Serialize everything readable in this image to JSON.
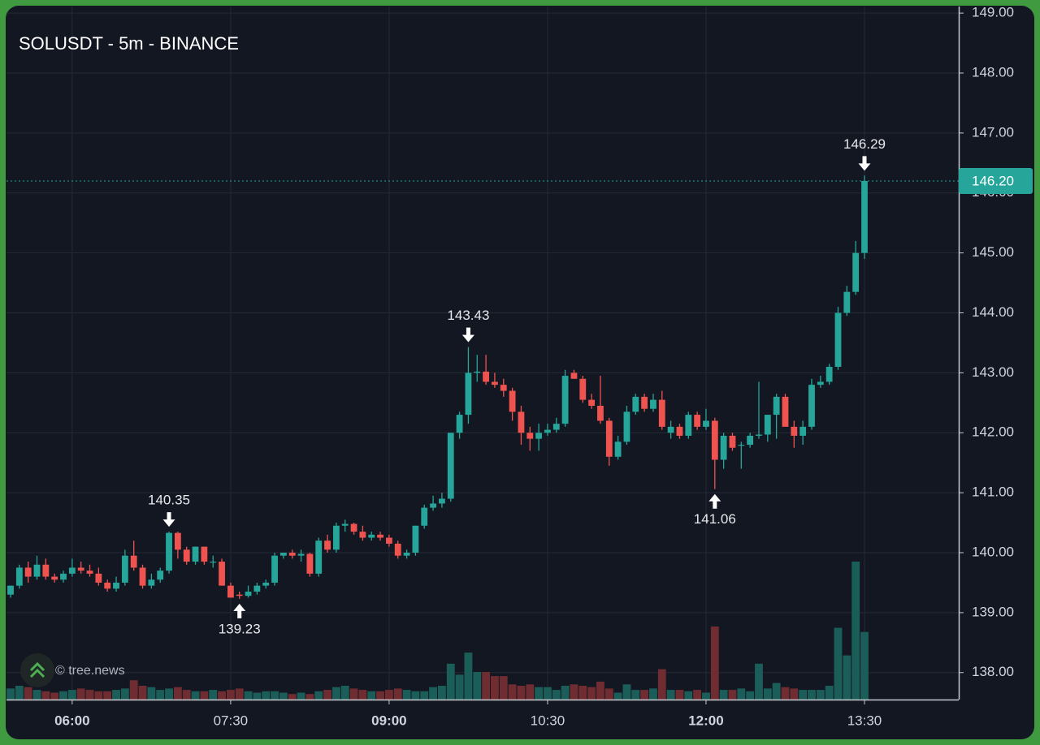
{
  "chart_data": {
    "type": "candlestick",
    "title": "SOLUSDT - 5m - BINANCE",
    "watermark": "© tree.news",
    "x": [
      "05:25",
      "05:30",
      "05:35",
      "05:40",
      "05:45",
      "05:50",
      "05:55",
      "06:00",
      "06:05",
      "06:10",
      "06:15",
      "06:20",
      "06:25",
      "06:30",
      "06:35",
      "06:40",
      "06:45",
      "06:50",
      "06:55",
      "07:00",
      "07:05",
      "07:10",
      "07:15",
      "07:20",
      "07:25",
      "07:30",
      "07:35",
      "07:40",
      "07:45",
      "07:50",
      "07:55",
      "08:00",
      "08:05",
      "08:10",
      "08:15",
      "08:20",
      "08:25",
      "08:30",
      "08:35",
      "08:40",
      "08:45",
      "08:50",
      "08:55",
      "09:00",
      "09:05",
      "09:10",
      "09:15",
      "09:20",
      "09:25",
      "09:30",
      "09:35",
      "09:40",
      "09:45",
      "09:50",
      "09:55",
      "10:00",
      "10:05",
      "10:10",
      "10:15",
      "10:20",
      "10:25",
      "10:30",
      "10:35",
      "10:40",
      "10:45",
      "10:50",
      "10:55",
      "11:00",
      "11:05",
      "11:10",
      "11:15",
      "11:20",
      "11:25",
      "11:30",
      "11:35",
      "11:40",
      "11:45",
      "11:50",
      "11:55",
      "12:00",
      "12:05",
      "12:10",
      "12:15",
      "12:20",
      "12:25",
      "12:30",
      "12:35",
      "12:40",
      "12:45",
      "12:50",
      "12:55",
      "13:00",
      "13:05",
      "13:10",
      "13:15",
      "13:20",
      "13:25",
      "13:30"
    ],
    "open": [
      139.3,
      139.45,
      139.75,
      139.6,
      139.8,
      139.6,
      139.55,
      139.65,
      139.75,
      139.7,
      139.65,
      139.5,
      139.4,
      139.5,
      139.95,
      139.75,
      139.45,
      139.55,
      139.7,
      140.33,
      140.05,
      139.85,
      140.1,
      139.85,
      139.85,
      139.45,
      139.3,
      139.28,
      139.35,
      139.45,
      139.5,
      139.95,
      140.0,
      139.95,
      139.98,
      139.65,
      140.2,
      140.05,
      140.45,
      140.48,
      140.35,
      140.25,
      140.3,
      140.25,
      140.15,
      139.95,
      140.0,
      140.45,
      140.75,
      140.82,
      140.9,
      142.0,
      142.3,
      143.0,
      143.02,
      142.85,
      142.8,
      142.7,
      142.35,
      142.0,
      141.9,
      142.0,
      142.05,
      142.15,
      143.0,
      142.9,
      142.55,
      142.45,
      142.2,
      141.6,
      141.85,
      142.35,
      142.6,
      142.4,
      142.55,
      142.0,
      142.1,
      141.95,
      142.3,
      142.1,
      142.2,
      141.55,
      141.95,
      141.8,
      141.8,
      141.95,
      141.97,
      142.3,
      142.6,
      142.1,
      141.95,
      142.1,
      142.8,
      142.85,
      143.1,
      144.0,
      144.35,
      145.0
    ],
    "high": [
      139.45,
      139.8,
      139.85,
      139.95,
      139.9,
      139.65,
      139.7,
      139.9,
      139.85,
      139.8,
      139.75,
      139.55,
      139.6,
      140.05,
      140.2,
      139.8,
      139.65,
      139.75,
      140.35,
      140.35,
      140.1,
      140.1,
      140.1,
      139.95,
      139.9,
      139.5,
      139.35,
      139.45,
      139.5,
      139.55,
      140.0,
      140.0,
      140.05,
      140.05,
      140.0,
      140.25,
      140.3,
      140.5,
      140.55,
      140.5,
      140.45,
      140.35,
      140.35,
      140.3,
      140.2,
      140.05,
      140.45,
      140.8,
      140.95,
      141.0,
      142.0,
      142.35,
      143.43,
      143.3,
      143.3,
      143.0,
      142.9,
      142.75,
      142.45,
      142.1,
      142.15,
      142.15,
      142.25,
      143.05,
      143.05,
      142.95,
      142.65,
      142.95,
      142.25,
      141.95,
      142.45,
      142.65,
      142.65,
      142.65,
      142.7,
      142.2,
      142.15,
      142.35,
      142.35,
      142.4,
      142.25,
      142.0,
      142.0,
      141.85,
      142.0,
      142.85,
      142.3,
      142.65,
      142.65,
      142.2,
      142.2,
      142.9,
      142.95,
      143.15,
      144.1,
      144.45,
      145.2,
      146.29
    ],
    "low": [
      139.25,
      139.4,
      139.5,
      139.55,
      139.55,
      139.5,
      139.5,
      139.6,
      139.65,
      139.6,
      139.45,
      139.35,
      139.35,
      139.45,
      139.7,
      139.4,
      139.4,
      139.5,
      139.65,
      139.9,
      139.8,
      139.8,
      139.8,
      139.75,
      139.45,
      139.25,
      139.23,
      139.25,
      139.3,
      139.4,
      139.45,
      139.9,
      139.9,
      139.85,
      139.6,
      139.6,
      140.0,
      140.0,
      140.35,
      140.3,
      140.2,
      140.2,
      140.2,
      140.1,
      139.9,
      139.9,
      139.95,
      140.4,
      140.7,
      140.75,
      140.85,
      141.9,
      142.15,
      142.85,
      142.8,
      142.75,
      142.6,
      142.2,
      141.8,
      141.7,
      141.7,
      141.95,
      142.0,
      142.1,
      142.9,
      142.5,
      142.4,
      142.15,
      141.45,
      141.55,
      141.8,
      142.3,
      142.35,
      142.35,
      142.05,
      141.9,
      141.9,
      141.9,
      142.05,
      142.05,
      141.06,
      141.4,
      141.7,
      141.4,
      141.75,
      141.9,
      141.85,
      141.9,
      142.15,
      141.75,
      141.8,
      142.05,
      142.75,
      142.8,
      143.05,
      143.95,
      144.3,
      144.9
    ],
    "close": [
      139.45,
      139.75,
      139.6,
      139.8,
      139.6,
      139.55,
      139.65,
      139.75,
      139.7,
      139.65,
      139.5,
      139.4,
      139.5,
      139.95,
      139.75,
      139.45,
      139.55,
      139.7,
      140.33,
      140.05,
      139.85,
      140.1,
      139.85,
      139.85,
      139.45,
      139.25,
      139.28,
      139.35,
      139.45,
      139.5,
      139.95,
      140.0,
      139.95,
      139.98,
      139.65,
      140.2,
      140.05,
      140.45,
      140.48,
      140.35,
      140.25,
      140.3,
      140.25,
      140.15,
      139.95,
      140.0,
      140.45,
      140.75,
      140.82,
      140.9,
      142.0,
      142.3,
      143.0,
      143.02,
      142.85,
      142.8,
      142.7,
      142.35,
      142.0,
      141.9,
      142.0,
      142.05,
      142.15,
      142.95,
      142.9,
      142.55,
      142.45,
      142.2,
      141.6,
      141.85,
      142.35,
      142.6,
      142.4,
      142.55,
      142.1,
      142.1,
      141.95,
      142.3,
      142.1,
      142.2,
      141.55,
      141.95,
      141.75,
      141.8,
      141.95,
      141.97,
      142.3,
      142.6,
      142.1,
      141.95,
      142.1,
      142.8,
      142.85,
      143.1,
      144.0,
      144.35,
      145.0,
      146.2
    ],
    "volume": [
      8,
      10,
      9,
      7,
      6,
      5,
      6,
      7,
      8,
      7,
      6,
      6,
      7,
      8,
      14,
      10,
      9,
      7,
      8,
      9,
      7,
      6,
      6,
      7,
      6,
      7,
      8,
      6,
      5,
      6,
      6,
      5,
      4,
      5,
      4,
      6,
      7,
      9,
      10,
      8,
      7,
      6,
      6,
      7,
      8,
      7,
      6,
      6,
      9,
      10,
      26,
      18,
      34,
      20,
      20,
      17,
      17,
      11,
      10,
      11,
      9,
      9,
      7,
      10,
      11,
      10,
      9,
      13,
      8,
      5,
      11,
      7,
      7,
      8,
      22,
      7,
      7,
      6,
      7,
      5,
      53,
      7,
      7,
      8,
      6,
      26,
      8,
      12,
      9,
      8,
      7,
      7,
      7,
      10,
      52,
      32,
      100,
      49
    ],
    "volume_lim": [
      0,
      100
    ],
    "up_color": "#26a69a",
    "down_color": "#ef5350",
    "volume_up_color": "#1b5e59",
    "volume_down_color": "#6f2c31",
    "ylim": [
      137.55,
      149.11
    ],
    "yticks": [
      {
        "value": 138,
        "label": "138.00"
      },
      {
        "value": 139,
        "label": "139.00"
      },
      {
        "value": 140,
        "label": "140.00"
      },
      {
        "value": 141,
        "label": "141.00"
      },
      {
        "value": 142,
        "label": "142.00"
      },
      {
        "value": 143,
        "label": "143.00"
      },
      {
        "value": 144,
        "label": "144.00"
      },
      {
        "value": 145,
        "label": "145.00"
      },
      {
        "value": 146,
        "label": "146.00"
      },
      {
        "value": 147,
        "label": "147.00"
      },
      {
        "value": 148,
        "label": "148.00"
      },
      {
        "value": 149,
        "label": "149.00"
      }
    ],
    "xticks": [
      "06:00",
      "07:30",
      "09:00",
      "10:30",
      "12:00",
      "13:30"
    ],
    "xtick_bold": [
      true,
      false,
      true,
      false,
      true,
      false
    ],
    "grid": true,
    "last_price": {
      "value": 146.2,
      "label": "146.20"
    },
    "annotations": [
      {
        "x": "06:55",
        "value": 140.35,
        "position": "above"
      },
      {
        "x": "07:35",
        "value": 139.23,
        "position": "below"
      },
      {
        "x": "09:45",
        "value": 143.43,
        "position": "above"
      },
      {
        "x": "12:05",
        "value": 141.06,
        "position": "below"
      },
      {
        "x": "13:30",
        "value": 146.29,
        "position": "above"
      }
    ]
  }
}
